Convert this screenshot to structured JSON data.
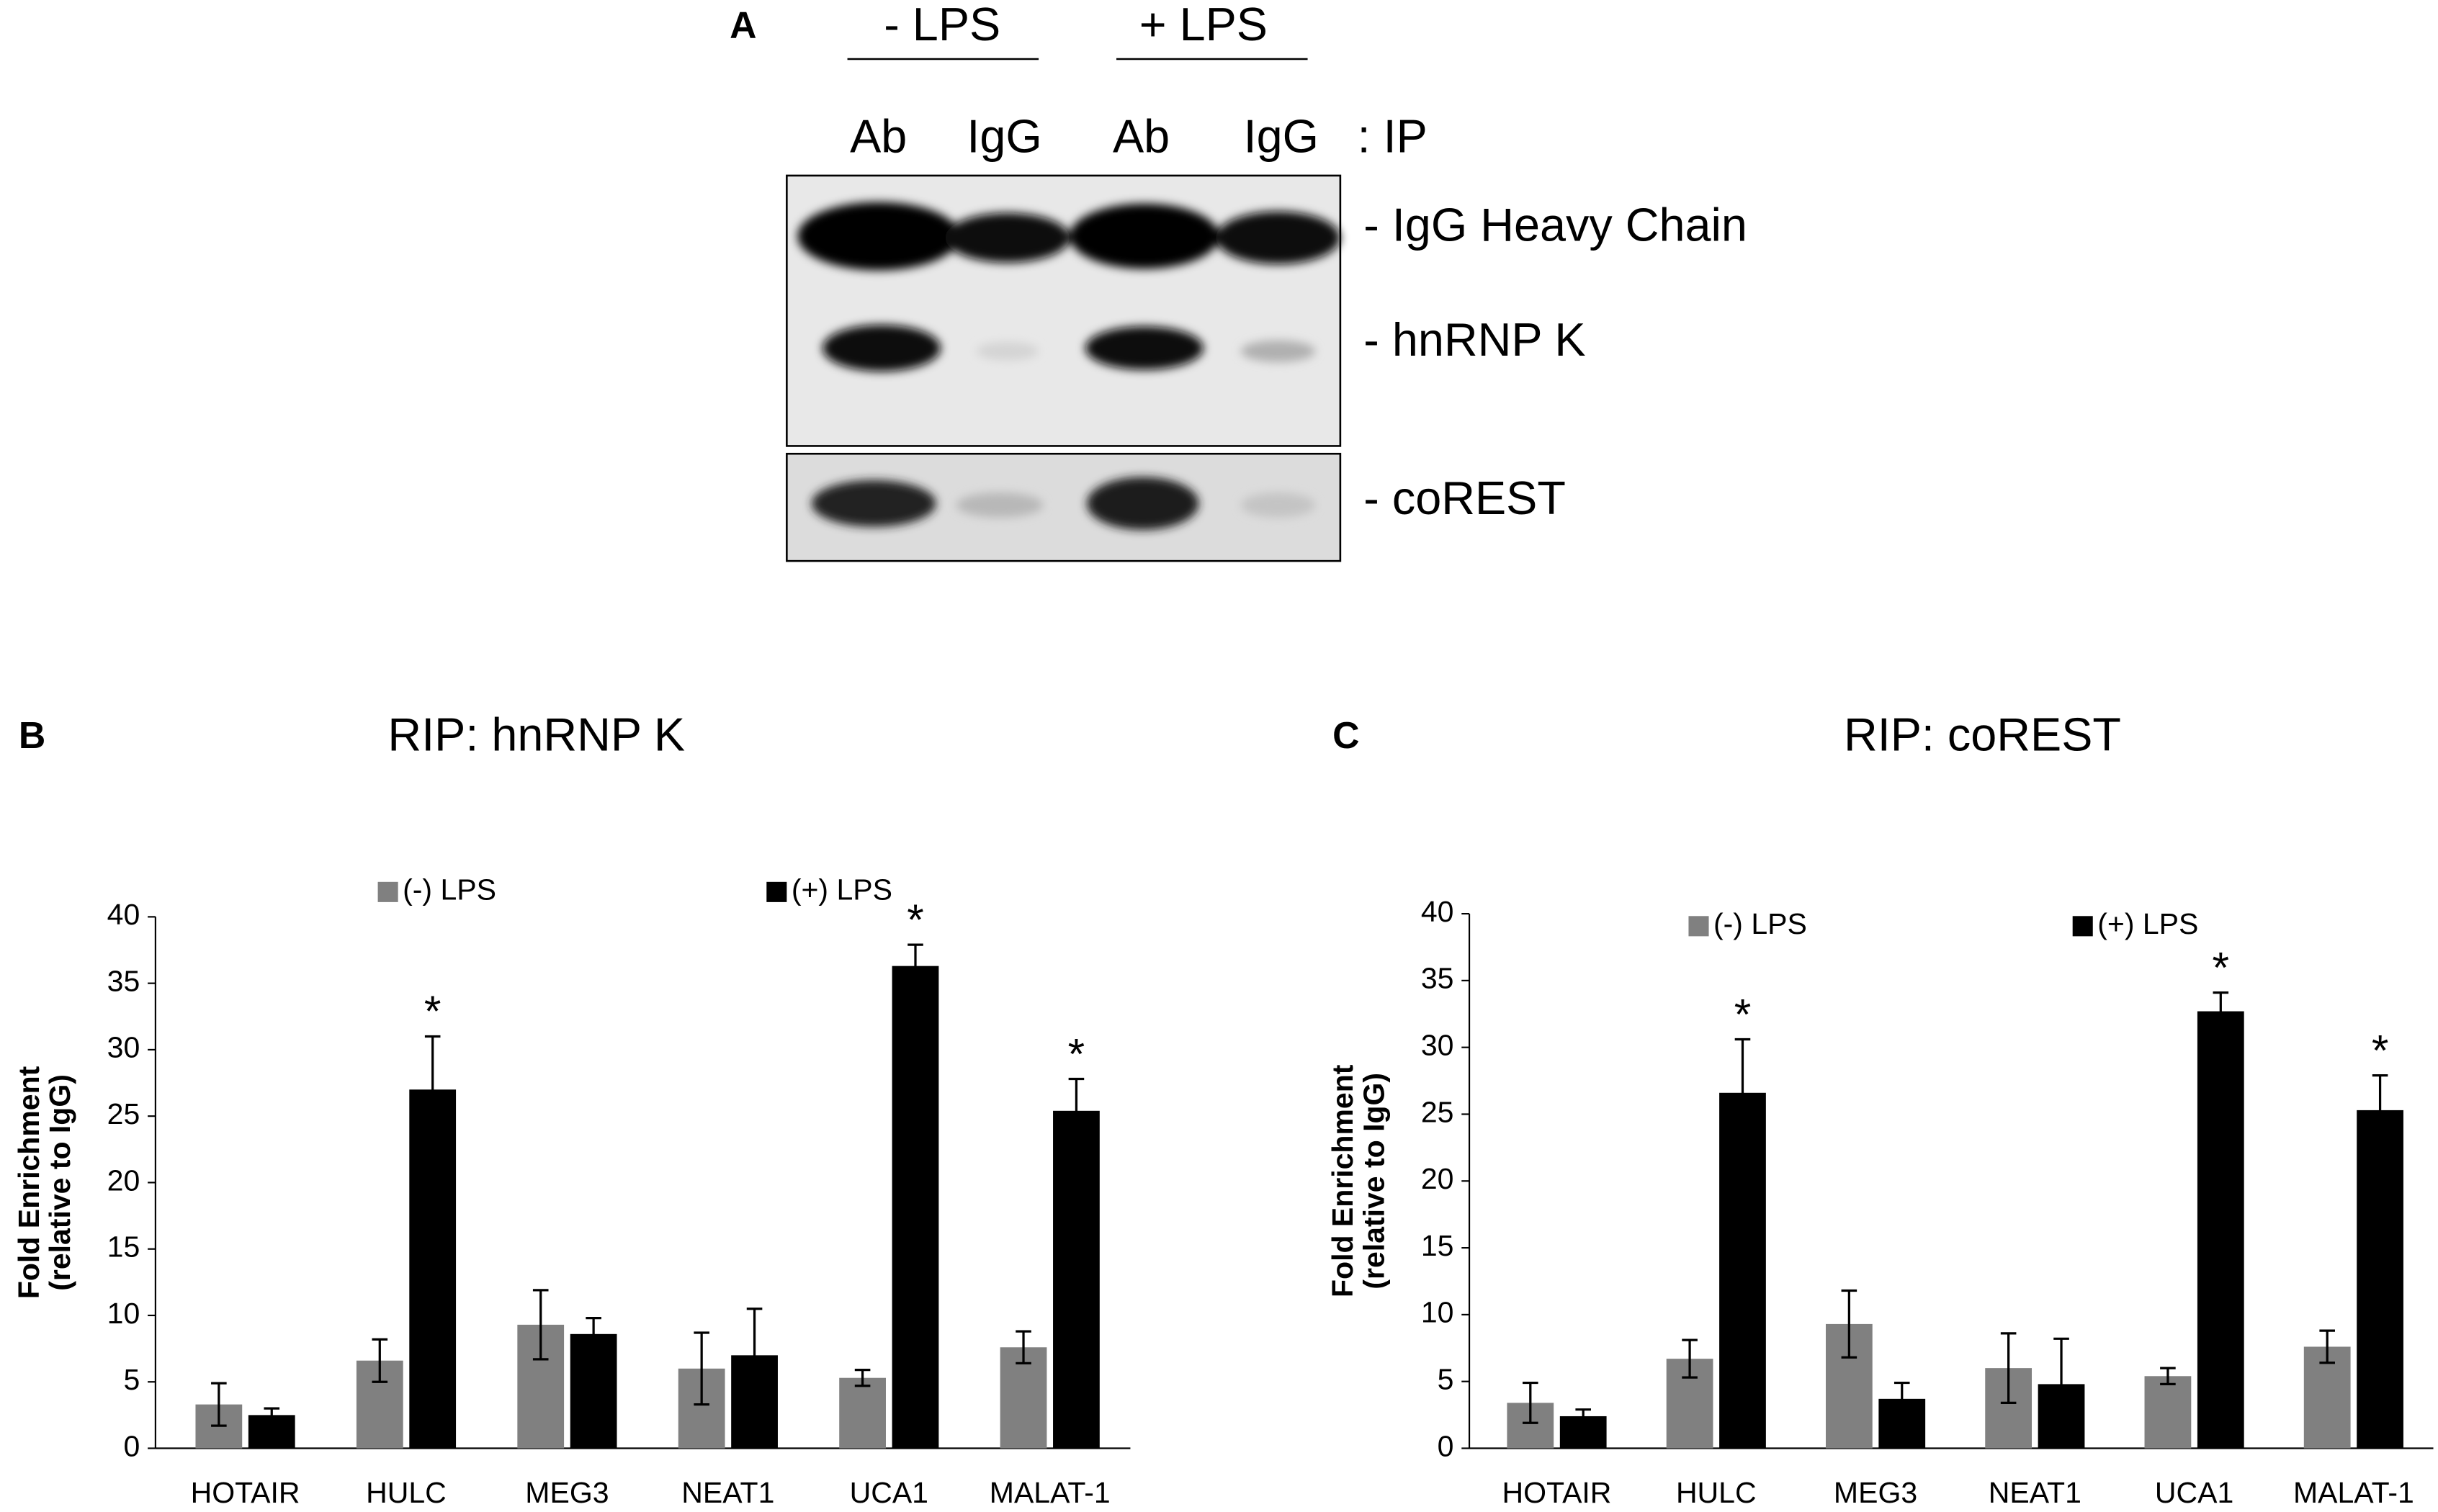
{
  "panel_a": {
    "label": "A",
    "conditions": [
      "- LPS",
      "+ LPS"
    ],
    "lanes": [
      "Ab",
      "IgG",
      "Ab",
      "IgG"
    ],
    "lane_suffix": ": IP",
    "bands": [
      "- IgG Heavy Chain",
      "- hnRNP K",
      "- coREST"
    ]
  },
  "chart_data": [
    {
      "type": "bar",
      "panel": "B",
      "title": "RIP: hnRNP K",
      "ylabel": [
        "Fold Enrichment",
        "(relative to IgG)"
      ],
      "categories": [
        "HOTAIR",
        "HULC",
        "MEG3",
        "NEAT1",
        "UCA1",
        "MALAT-1"
      ],
      "series": [
        {
          "name": "(-) LPS",
          "color": "#808080",
          "values": [
            3.3,
            6.6,
            9.3,
            6.0,
            5.3,
            7.6
          ],
          "errors": [
            1.6,
            1.6,
            2.6,
            2.7,
            0.6,
            1.2
          ]
        },
        {
          "name": "(+) LPS",
          "color": "#000000",
          "values": [
            2.5,
            27.0,
            8.6,
            7.0,
            36.3,
            25.4
          ],
          "errors": [
            0.5,
            4.0,
            1.2,
            3.5,
            1.6,
            2.4
          ],
          "markers": [
            null,
            "*",
            null,
            null,
            "*",
            "*"
          ]
        }
      ],
      "ylim": [
        0,
        40
      ],
      "yticks": [
        0,
        5,
        10,
        15,
        20,
        25,
        30,
        35,
        40
      ],
      "legend": "top"
    },
    {
      "type": "bar",
      "panel": "C",
      "title": "RIP: coREST",
      "ylabel": [
        "Fold Enrichment",
        "(relative to IgG)"
      ],
      "categories": [
        "HOTAIR",
        "HULC",
        "MEG3",
        "NEAT1",
        "UCA1",
        "MALAT-1"
      ],
      "series": [
        {
          "name": "(-) LPS",
          "color": "#808080",
          "values": [
            3.4,
            6.7,
            9.3,
            6.0,
            5.4,
            7.6
          ],
          "errors": [
            1.5,
            1.4,
            2.5,
            2.6,
            0.6,
            1.2
          ]
        },
        {
          "name": "(+) LPS",
          "color": "#000000",
          "values": [
            2.4,
            26.6,
            3.7,
            4.8,
            32.7,
            25.3
          ],
          "errors": [
            0.5,
            4.0,
            1.2,
            3.4,
            1.4,
            2.6
          ],
          "markers": [
            null,
            "*",
            null,
            null,
            "*",
            "*"
          ]
        }
      ],
      "ylim": [
        0,
        40
      ],
      "yticks": [
        0,
        5,
        10,
        15,
        20,
        25,
        30,
        35,
        40
      ],
      "legend": "top"
    }
  ]
}
